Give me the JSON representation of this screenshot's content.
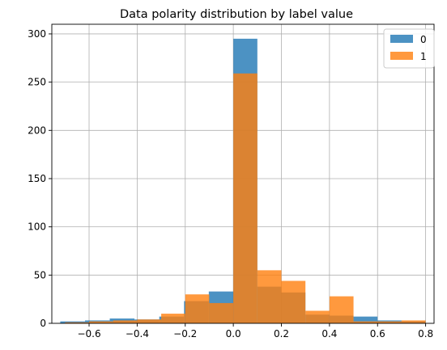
{
  "chart_data": {
    "type": "histogram",
    "title": "Data polarity distribution by label value",
    "xlabel": "",
    "ylabel": "",
    "xlim": [
      -0.755,
      0.835
    ],
    "ylim": [
      0,
      310
    ],
    "x_ticks": [
      -0.6,
      -0.4,
      -0.2,
      0.0,
      0.2,
      0.4,
      0.6,
      0.8
    ],
    "x_tick_labels": [
      "−0.6",
      "−0.4",
      "−0.2",
      "0.0",
      "0.2",
      "0.4",
      "0.6",
      "0.8"
    ],
    "y_ticks": [
      0,
      50,
      100,
      150,
      200,
      250,
      300
    ],
    "y_tick_labels": [
      "0",
      "50",
      "100",
      "150",
      "200",
      "250",
      "300"
    ],
    "grid": true,
    "legend_position": "top-right",
    "series": [
      {
        "name": "0",
        "color": "#1f77b4",
        "bins": [
          {
            "x0": -0.72,
            "x1": -0.617,
            "count": 2
          },
          {
            "x0": -0.617,
            "x1": -0.514,
            "count": 3
          },
          {
            "x0": -0.514,
            "x1": -0.411,
            "count": 5
          },
          {
            "x0": -0.411,
            "x1": -0.308,
            "count": 4
          },
          {
            "x0": -0.308,
            "x1": -0.205,
            "count": 7
          },
          {
            "x0": -0.205,
            "x1": -0.102,
            "count": 23
          },
          {
            "x0": -0.102,
            "x1": 0.0,
            "count": 33
          },
          {
            "x0": 0.0,
            "x1": 0.1,
            "count": 295
          },
          {
            "x0": 0.1,
            "x1": 0.2,
            "count": 38
          },
          {
            "x0": 0.2,
            "x1": 0.3,
            "count": 32
          },
          {
            "x0": 0.3,
            "x1": 0.4,
            "count": 9
          },
          {
            "x0": 0.4,
            "x1": 0.5,
            "count": 8
          },
          {
            "x0": 0.5,
            "x1": 0.6,
            "count": 7
          },
          {
            "x0": 0.6,
            "x1": 0.7,
            "count": 3
          },
          {
            "x0": 0.7,
            "x1": 0.8,
            "count": 2
          }
        ]
      },
      {
        "name": "1",
        "color": "#ff7f0e",
        "bins": [
          {
            "x0": -0.7,
            "x1": -0.6,
            "count": 1
          },
          {
            "x0": -0.6,
            "x1": -0.5,
            "count": 2
          },
          {
            "x0": -0.5,
            "x1": -0.4,
            "count": 3
          },
          {
            "x0": -0.4,
            "x1": -0.3,
            "count": 4
          },
          {
            "x0": -0.3,
            "x1": -0.2,
            "count": 10
          },
          {
            "x0": -0.2,
            "x1": -0.1,
            "count": 30
          },
          {
            "x0": -0.1,
            "x1": 0.0,
            "count": 21
          },
          {
            "x0": 0.0,
            "x1": 0.1,
            "count": 259
          },
          {
            "x0": 0.1,
            "x1": 0.2,
            "count": 55
          },
          {
            "x0": 0.2,
            "x1": 0.3,
            "count": 44
          },
          {
            "x0": 0.3,
            "x1": 0.4,
            "count": 13
          },
          {
            "x0": 0.4,
            "x1": 0.5,
            "count": 28
          },
          {
            "x0": 0.5,
            "x1": 0.6,
            "count": 2
          },
          {
            "x0": 0.6,
            "x1": 0.7,
            "count": 2
          },
          {
            "x0": 0.7,
            "x1": 0.8,
            "count": 3
          }
        ]
      }
    ]
  }
}
